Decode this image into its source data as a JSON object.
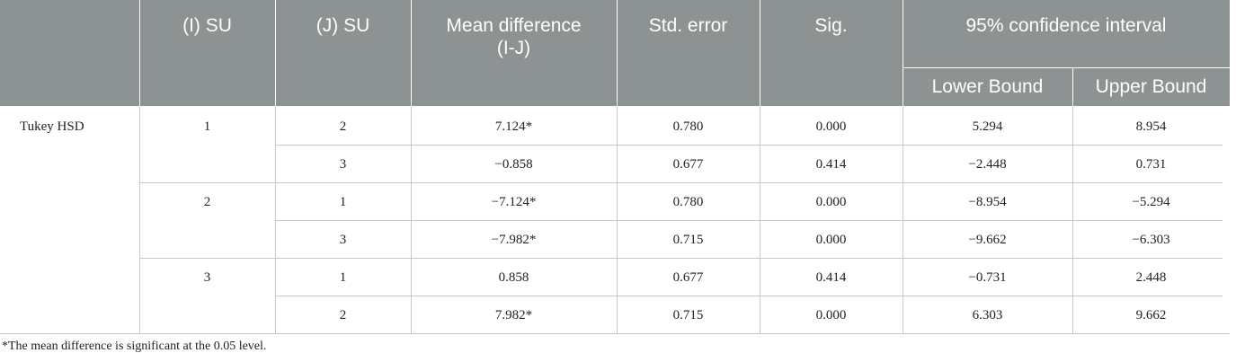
{
  "header": {
    "columns": [
      "(I) SU",
      "(J) SU",
      "Mean difference (I-J)",
      "Std. error",
      "Sig.",
      "95% confidence interval"
    ],
    "subcolumns": [
      "Lower Bound",
      "Upper Bound"
    ]
  },
  "table": {
    "method": "Tukey HSD",
    "groups": [
      {
        "i": "1",
        "rows": [
          [
            "2",
            "7.124*",
            "0.780",
            "0.000",
            "5.294",
            "8.954"
          ],
          [
            "3",
            "−0.858",
            "0.677",
            "0.414",
            "−2.448",
            "0.731"
          ]
        ]
      },
      {
        "i": "2",
        "rows": [
          [
            "1",
            "−7.124*",
            "0.780",
            "0.000",
            "−8.954",
            "−5.294"
          ],
          [
            "3",
            "−7.982*",
            "0.715",
            "0.000",
            "−9.662",
            "−6.303"
          ]
        ]
      },
      {
        "i": "3",
        "rows": [
          [
            "1",
            "0.858",
            "0.677",
            "0.414",
            "−0.731",
            "2.448"
          ],
          [
            "2",
            "7.982*",
            "0.715",
            "0.000",
            "6.303",
            "9.662"
          ]
        ]
      }
    ]
  },
  "footnote": "*The mean difference is significant at the 0.05 level."
}
